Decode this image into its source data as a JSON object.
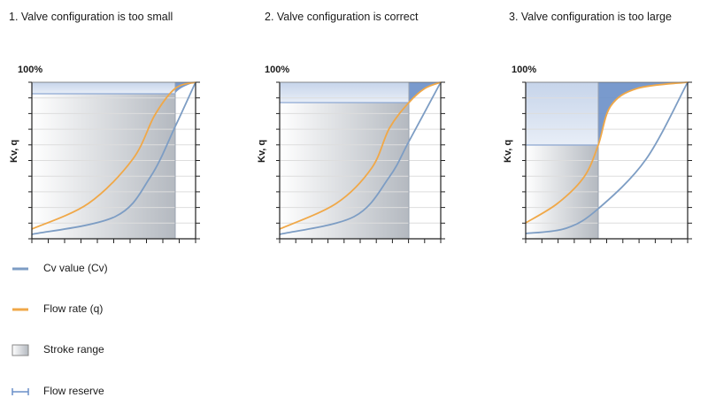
{
  "panels": [
    {
      "title": "1. Valve configuration is too small",
      "top_label": "100%",
      "y_label": "Kv, q"
    },
    {
      "title": "2. Valve configuration is correct",
      "top_label": "100%",
      "y_label": "Kv, q"
    },
    {
      "title": "3. Valve configuration is too large",
      "top_label": "100%",
      "y_label": "Kv, q"
    }
  ],
  "legend": [
    {
      "label": "Cv value (Cv)",
      "icon": "blue-line-icon"
    },
    {
      "label": "Flow rate (q)",
      "icon": "orange-line-icon"
    },
    {
      "label": "Stroke range",
      "icon": "gradient-box-icon"
    },
    {
      "label": "Flow reserve",
      "icon": "range-bracket-icon"
    }
  ],
  "colors": {
    "cv_curve": "#7d9dc4",
    "flow_curve": "#f0a848",
    "axis": "#222222",
    "grid": "#dddddd",
    "reserve_fill": "#6a8fc8",
    "stroke_gradient_light": "#ffffff",
    "stroke_gradient_dark": "#b4b9c0"
  }
}
